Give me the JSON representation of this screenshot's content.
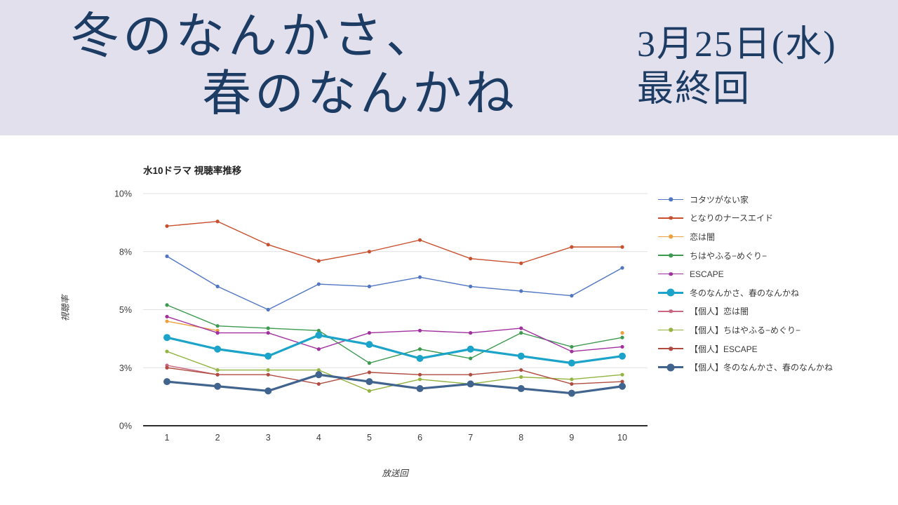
{
  "header": {
    "title_line1": "冬のなんかさ、",
    "title_line2": "春のなんかね",
    "date_line1": "3月25日(水)",
    "date_line2": "最終回"
  },
  "colors": {
    "header_bg": "#e3e0ee",
    "header_text": "#1d3c64",
    "gridline": "#e1e1e1",
    "axis_line": "#2d2d2d",
    "axis_text": "#3b3b3b"
  },
  "chart_data": {
    "type": "line",
    "title": "水10ドラマ 視聴率推移",
    "xlabel": "放送回",
    "ylabel": "視聴率",
    "x": [
      1,
      2,
      3,
      4,
      5,
      6,
      7,
      8,
      9,
      10
    ],
    "ylim": [
      0,
      10
    ],
    "yticks": [
      {
        "value": 0,
        "label": "0%"
      },
      {
        "value": 2.5,
        "label": "3%"
      },
      {
        "value": 5,
        "label": "5%"
      },
      {
        "value": 7.5,
        "label": "8%"
      },
      {
        "value": 10,
        "label": "10%"
      }
    ],
    "grid": true,
    "legend_position": "right",
    "series": [
      {
        "name": "コタツがない家",
        "color": "#5076c2",
        "bold": false,
        "values": [
          7.3,
          6.0,
          5.0,
          6.1,
          6.0,
          6.4,
          6.0,
          5.8,
          5.6,
          6.8
        ]
      },
      {
        "name": "となりのナースエイド",
        "color": "#c8502f",
        "bold": false,
        "values": [
          8.6,
          8.8,
          7.8,
          7.1,
          7.5,
          8.0,
          7.2,
          7.0,
          7.7,
          7.7
        ]
      },
      {
        "name": "恋は闇",
        "color": "#eca13e",
        "bold": false,
        "values": [
          4.5,
          4.1,
          null,
          null,
          null,
          null,
          null,
          null,
          null,
          4.0
        ]
      },
      {
        "name": "ちはやふる−めぐり−",
        "color": "#3d9a50",
        "bold": false,
        "values": [
          5.2,
          4.3,
          4.2,
          4.1,
          2.7,
          3.3,
          2.9,
          4.0,
          3.4,
          3.8
        ]
      },
      {
        "name": "ESCAPE",
        "color": "#a1309f",
        "bold": false,
        "values": [
          4.7,
          4.0,
          4.0,
          3.3,
          4.0,
          4.1,
          4.0,
          4.2,
          3.2,
          3.4
        ]
      },
      {
        "name": "冬のなんかさ、春のなんかね",
        "color": "#1ba3c9",
        "bold": true,
        "values": [
          3.8,
          3.3,
          3.0,
          3.9,
          3.5,
          2.9,
          3.3,
          3.0,
          2.7,
          3.0
        ]
      },
      {
        "name": "【個人】恋は闇",
        "color": "#c96782",
        "bold": false,
        "values": [
          2.6,
          2.2,
          null,
          null,
          null,
          null,
          null,
          null,
          null,
          null
        ]
      },
      {
        "name": "【個人】ちはやふる−めぐり−",
        "color": "#93b441",
        "bold": false,
        "values": [
          3.2,
          2.4,
          2.4,
          2.4,
          1.5,
          2.0,
          1.8,
          2.1,
          2.0,
          2.2
        ]
      },
      {
        "name": "【個人】ESCAPE",
        "color": "#b04b40",
        "bold": false,
        "values": [
          2.5,
          2.2,
          2.2,
          1.8,
          2.3,
          2.2,
          2.2,
          2.4,
          1.8,
          1.9
        ]
      },
      {
        "name": "【個人】冬のなんかさ、春のなんかね",
        "color": "#41648f",
        "bold": true,
        "values": [
          1.9,
          1.7,
          1.5,
          2.2,
          1.9,
          1.6,
          1.8,
          1.6,
          1.4,
          1.7
        ]
      }
    ]
  }
}
